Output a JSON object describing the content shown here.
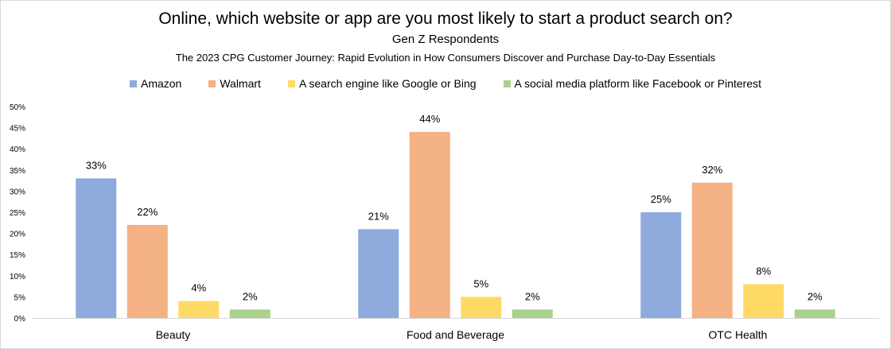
{
  "chart_data": {
    "type": "bar",
    "title": "Online, which website or app are you most likely to start a product search on?",
    "subtitle": "Gen Z Respondents",
    "subtitle2": "The 2023 CPG Customer Journey:  Rapid Evolution in How Consumers Discover and Purchase Day-to-Day Essentials",
    "categories": [
      "Beauty",
      "Food and Beverage",
      "OTC Health"
    ],
    "series": [
      {
        "name": "Amazon",
        "color": "#8faadc",
        "values": [
          33,
          21,
          25
        ],
        "labels": [
          "33%",
          "21%",
          "25%"
        ]
      },
      {
        "name": "Walmart",
        "color": "#f4b183",
        "values": [
          22,
          44,
          32
        ],
        "labels": [
          "22%",
          "44%",
          "32%"
        ]
      },
      {
        "name": "A search engine like Google or Bing",
        "color": "#ffd966",
        "values": [
          4,
          5,
          8
        ],
        "labels": [
          "4%",
          "5%",
          "8%"
        ]
      },
      {
        "name": "A social media platform like Facebook or Pinterest",
        "color": "#a9d18e",
        "values": [
          2,
          2,
          2
        ],
        "labels": [
          "2%",
          "2%",
          "2%"
        ]
      }
    ],
    "ylim": [
      0,
      50
    ],
    "yticks": [
      "0%",
      "5%",
      "10%",
      "15%",
      "20%",
      "25%",
      "30%",
      "35%",
      "40%",
      "45%",
      "50%"
    ],
    "grid": false,
    "legend_position": "top"
  }
}
